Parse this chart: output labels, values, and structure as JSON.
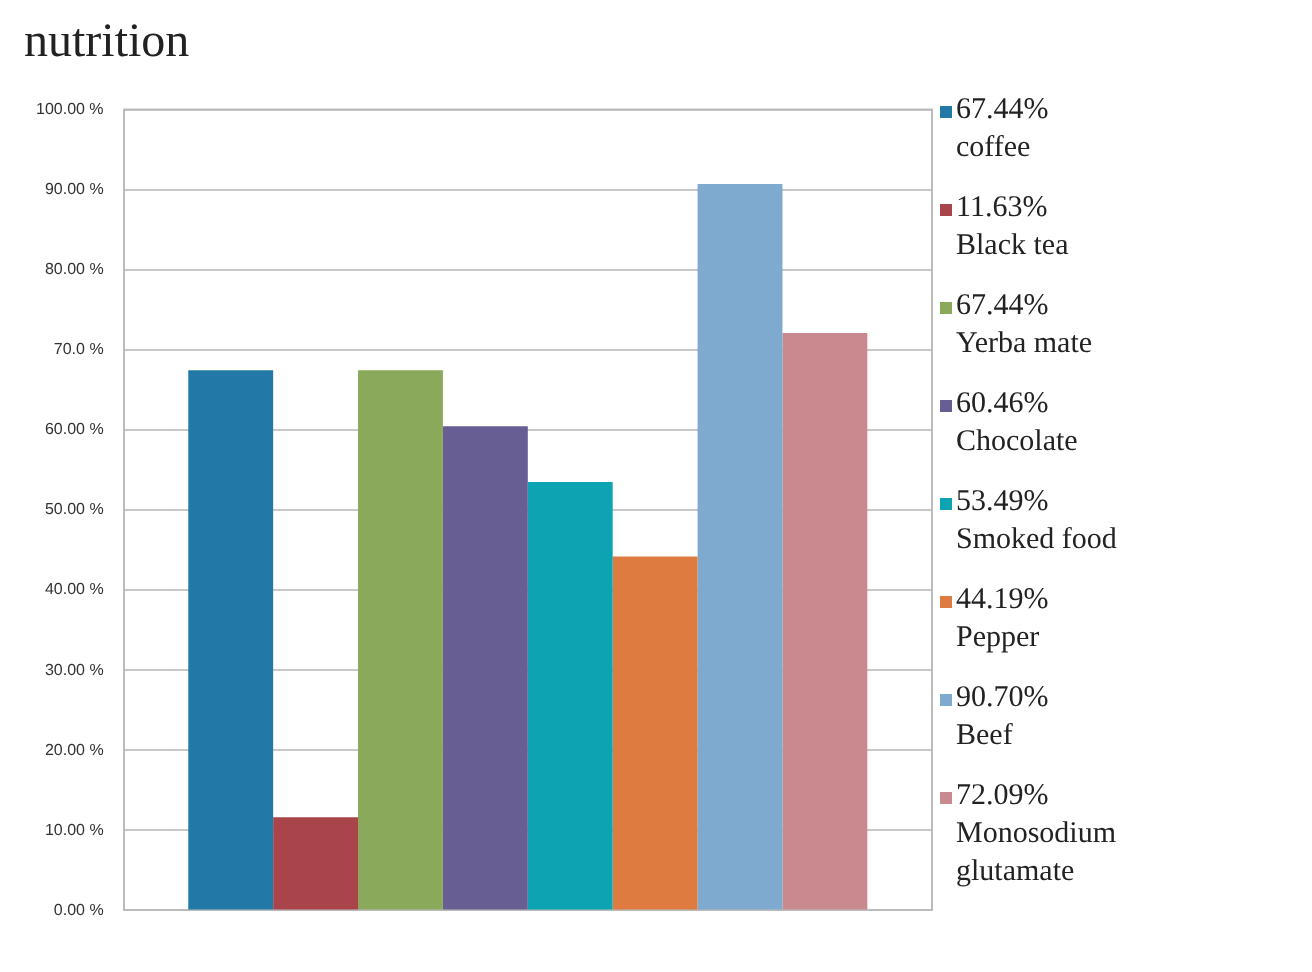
{
  "chart_data": {
    "type": "bar",
    "title": "nutrition",
    "categories": [
      null
    ],
    "series": [
      {
        "name": "67.44% coffee",
        "color": "#2279a8",
        "values": [
          67.44
        ]
      },
      {
        "name": "11.63% Black tea",
        "color": "#a8444a",
        "values": [
          11.63
        ]
      },
      {
        "name": "67.44% Yerba mate",
        "color": "#8aa95a",
        "values": [
          67.44
        ]
      },
      {
        "name": "60.46% Chocolate",
        "color": "#675e94",
        "values": [
          60.46
        ]
      },
      {
        "name": "53.49% Smoked food",
        "color": "#0ca4b2",
        "values": [
          53.49
        ]
      },
      {
        "name": "44.19% Pepper",
        "color": "#de7b41",
        "values": [
          44.19
        ]
      },
      {
        "name": "90.70% Beef",
        "color": "#7eaacf",
        "values": [
          90.7
        ]
      },
      {
        "name": "72.09% Monosodium glutamate",
        "color": "#c98a8f",
        "values": [
          72.09
        ]
      }
    ],
    "ylim": [
      0,
      100
    ],
    "yticks": [
      {
        "value": 0,
        "label": "0.00 %"
      },
      {
        "value": 10,
        "label": "10.00 %"
      },
      {
        "value": 20,
        "label": "20.00 %"
      },
      {
        "value": 30,
        "label": "30.00 %"
      },
      {
        "value": 40,
        "label": "40.00 %"
      },
      {
        "value": 50,
        "label": "50.00 %"
      },
      {
        "value": 60,
        "label": "60.00 %"
      },
      {
        "value": 70,
        "label": "70.0 %"
      },
      {
        "value": 80,
        "label": "80.00 %"
      },
      {
        "value": 90,
        "label": "90.00 %"
      },
      {
        "value": 100,
        "label": "100.00 %"
      }
    ],
    "grid": "y",
    "legend": "right"
  }
}
